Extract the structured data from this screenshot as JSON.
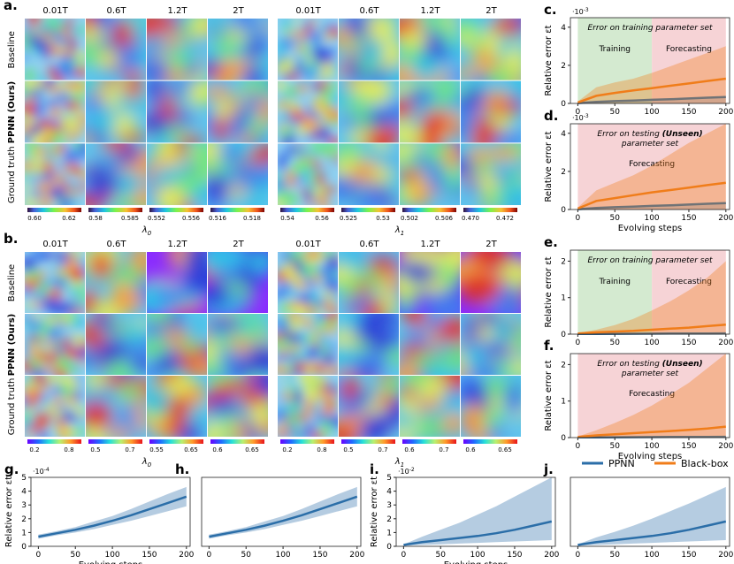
{
  "panels": {
    "a": {
      "letter": "a.",
      "time_labels": [
        "0.01T",
        "0.6T",
        "1.2T",
        "2T"
      ],
      "row_labels": [
        "Baseline",
        "PPNN (Ours)",
        "Ground truth"
      ],
      "groups": [
        {
          "xlabel": "λ0",
          "colorbar_ticks": [
            [
              "0.60",
              "0.62"
            ],
            [
              "0.58",
              "0.585"
            ],
            [
              "0.552",
              "0.556"
            ],
            [
              "0.516",
              "0.518"
            ]
          ]
        },
        {
          "xlabel": "λ1",
          "colorbar_ticks": [
            [
              "0.54",
              "0.56"
            ],
            [
              "0.525",
              "0.53"
            ],
            [
              "0.502",
              "0.506"
            ],
            [
              "0.470",
              "0.472"
            ]
          ]
        }
      ]
    },
    "b": {
      "letter": "b.",
      "time_labels": [
        "0.01T",
        "0.6T",
        "1.2T",
        "2T"
      ],
      "row_labels": [
        "Baseline",
        "PPNN (Ours)",
        "Ground truth"
      ],
      "groups": [
        {
          "xlabel": "λ0",
          "colorbar_ticks": [
            [
              "0.2",
              "0.8"
            ],
            [
              "0.5",
              "0.7"
            ],
            [
              "0.55",
              "0.65"
            ],
            [
              "0.6",
              "0.65"
            ]
          ]
        },
        {
          "xlabel": "λ1",
          "colorbar_ticks": [
            [
              "0.2",
              "0.8"
            ],
            [
              "0.5",
              "0.7"
            ],
            [
              "0.6",
              "0.7"
            ],
            [
              "0.6",
              "0.65"
            ]
          ]
        }
      ]
    }
  },
  "colors": {
    "ppnn": "#2b6ea8",
    "blackbox": "#f07d1a",
    "training_bg": "#d4ead0",
    "forecast_bg": "#f6d3d6"
  },
  "legend": {
    "ppnn": "PPNN",
    "blackbox": "Black-box"
  },
  "chart_data": [
    {
      "panel": "c.",
      "type": "line",
      "title": "Error on training parameter set",
      "multiplier": "10^-3",
      "ylabel": "Relative error εt",
      "xlabel": "",
      "ylim": [
        0,
        4.5
      ],
      "xlim": [
        -10,
        205
      ],
      "yticks": [
        "0",
        "2",
        "4"
      ],
      "xticks": [
        "0",
        "50",
        "100",
        "150",
        "200"
      ],
      "regions": [
        {
          "label": "Training",
          "from": 0,
          "to": 100
        },
        {
          "label": "Forecasting",
          "from": 100,
          "to": 200
        }
      ],
      "x": [
        0,
        25,
        50,
        75,
        100,
        125,
        150,
        175,
        200
      ],
      "series": [
        {
          "name": "PPNN",
          "values": [
            0.02,
            0.08,
            0.12,
            0.15,
            0.19,
            0.22,
            0.26,
            0.3,
            0.34
          ],
          "upper": [
            0.03,
            0.1,
            0.14,
            0.18,
            0.22,
            0.26,
            0.3,
            0.34,
            0.38
          ]
        },
        {
          "name": "Black-box",
          "values": [
            0.05,
            0.4,
            0.55,
            0.68,
            0.8,
            0.93,
            1.05,
            1.18,
            1.3
          ],
          "upper": [
            0.1,
            0.85,
            1.1,
            1.3,
            1.6,
            1.95,
            2.3,
            2.65,
            3.0
          ]
        }
      ]
    },
    {
      "panel": "d.",
      "type": "line",
      "title": "Error on testing (Unseen) parameter set",
      "multiplier": "10^-3",
      "ylabel": "Relative error εt",
      "xlabel": "Evolving steps",
      "ylim": [
        0,
        4.5
      ],
      "xlim": [
        -10,
        205
      ],
      "yticks": [
        "0",
        "2",
        "4"
      ],
      "xticks": [
        "0",
        "50",
        "100",
        "150",
        "200"
      ],
      "regions": [
        {
          "label": "Forecasting",
          "from": 0,
          "to": 200
        }
      ],
      "x": [
        0,
        25,
        50,
        75,
        100,
        125,
        150,
        175,
        200
      ],
      "series": [
        {
          "name": "PPNN",
          "values": [
            0.02,
            0.08,
            0.12,
            0.15,
            0.19,
            0.22,
            0.26,
            0.3,
            0.34
          ],
          "upper": [
            0.03,
            0.1,
            0.14,
            0.18,
            0.22,
            0.26,
            0.3,
            0.34,
            0.38
          ]
        },
        {
          "name": "Black-box",
          "values": [
            0.05,
            0.45,
            0.6,
            0.75,
            0.9,
            1.02,
            1.15,
            1.28,
            1.4
          ],
          "upper": [
            0.1,
            1.0,
            1.4,
            1.8,
            2.3,
            2.9,
            3.5,
            4.0,
            4.5
          ]
        }
      ]
    },
    {
      "panel": "e.",
      "type": "line",
      "title": "Error on training parameter set",
      "multiplier": "",
      "ylabel": "Relative error εt",
      "xlabel": "",
      "ylim": [
        0,
        2.3
      ],
      "xlim": [
        -10,
        205
      ],
      "yticks": [
        "0",
        "1",
        "2"
      ],
      "xticks": [
        "0",
        "50",
        "100",
        "150",
        "200"
      ],
      "regions": [
        {
          "label": "Training",
          "from": 0,
          "to": 100
        },
        {
          "label": "Forecasting",
          "from": 100,
          "to": 200
        }
      ],
      "x": [
        0,
        25,
        50,
        75,
        100,
        125,
        150,
        175,
        200
      ],
      "series": [
        {
          "name": "PPNN",
          "values": [
            0.005,
            0.008,
            0.01,
            0.012,
            0.014,
            0.016,
            0.018,
            0.02,
            0.022
          ],
          "upper": [
            0.006,
            0.01,
            0.013,
            0.016,
            0.019,
            0.022,
            0.025,
            0.028,
            0.031
          ]
        },
        {
          "name": "Black-box",
          "values": [
            0.02,
            0.05,
            0.07,
            0.09,
            0.12,
            0.15,
            0.18,
            0.22,
            0.26
          ],
          "upper": [
            0.03,
            0.12,
            0.25,
            0.42,
            0.65,
            0.9,
            1.2,
            1.55,
            2.0
          ]
        }
      ]
    },
    {
      "panel": "f.",
      "type": "line",
      "title": "Error on testing (Unseen) parameter set",
      "multiplier": "",
      "ylabel": "Relative error εt",
      "xlabel": "Evolving steps",
      "ylim": [
        0,
        2.3
      ],
      "xlim": [
        -10,
        205
      ],
      "yticks": [
        "0",
        "1",
        "2"
      ],
      "xticks": [
        "0",
        "50",
        "100",
        "150",
        "200"
      ],
      "regions": [
        {
          "label": "Forecasting",
          "from": 0,
          "to": 200
        }
      ],
      "x": [
        0,
        25,
        50,
        75,
        100,
        125,
        150,
        175,
        200
      ],
      "series": [
        {
          "name": "PPNN",
          "values": [
            0.005,
            0.008,
            0.01,
            0.012,
            0.014,
            0.016,
            0.018,
            0.02,
            0.022
          ],
          "upper": [
            0.006,
            0.01,
            0.013,
            0.016,
            0.019,
            0.022,
            0.025,
            0.028,
            0.031
          ]
        },
        {
          "name": "Black-box",
          "values": [
            0.02,
            0.06,
            0.09,
            0.12,
            0.15,
            0.18,
            0.21,
            0.25,
            0.3
          ],
          "upper": [
            0.03,
            0.2,
            0.4,
            0.62,
            0.88,
            1.18,
            1.5,
            1.9,
            2.4
          ]
        }
      ]
    },
    {
      "panel": "g.",
      "type": "line",
      "multiplier": "10^-4",
      "ylabel": "Relative error εt",
      "xlabel": "Evolving steps",
      "ylim": [
        0,
        5
      ],
      "xlim": [
        -10,
        205
      ],
      "yticks": [
        "0",
        "1",
        "2",
        "3",
        "4",
        "5"
      ],
      "xticks": [
        "0",
        "50",
        "100",
        "150",
        "200"
      ],
      "x": [
        0,
        25,
        50,
        75,
        100,
        125,
        150,
        175,
        200
      ],
      "series": [
        {
          "name": "PPNN",
          "values": [
            0.7,
            0.95,
            1.2,
            1.5,
            1.85,
            2.25,
            2.7,
            3.15,
            3.6
          ],
          "lower": [
            0.55,
            0.8,
            1.0,
            1.25,
            1.55,
            1.85,
            2.2,
            2.55,
            2.9
          ],
          "upper": [
            0.85,
            1.1,
            1.4,
            1.8,
            2.2,
            2.7,
            3.25,
            3.8,
            4.3
          ]
        }
      ]
    },
    {
      "panel": "h.",
      "type": "line",
      "multiplier": "",
      "ylabel": "",
      "xlabel": "",
      "ylim": [
        0,
        5
      ],
      "xlim": [
        -10,
        205
      ],
      "yticks": [],
      "xticks": [
        "0",
        "50",
        "100",
        "150",
        "200"
      ],
      "x": [
        0,
        25,
        50,
        75,
        100,
        125,
        150,
        175,
        200
      ],
      "series": [
        {
          "name": "PPNN",
          "values": [
            0.7,
            0.95,
            1.2,
            1.5,
            1.85,
            2.25,
            2.7,
            3.15,
            3.6
          ],
          "lower": [
            0.55,
            0.8,
            1.0,
            1.25,
            1.55,
            1.85,
            2.2,
            2.55,
            2.9
          ],
          "upper": [
            0.85,
            1.1,
            1.4,
            1.8,
            2.2,
            2.7,
            3.25,
            3.8,
            4.3
          ]
        }
      ]
    },
    {
      "panel": "i.",
      "type": "line",
      "multiplier": "10^-2",
      "ylabel": "Relative error εt",
      "xlabel": "Evolving steps",
      "ylim": [
        0,
        5
      ],
      "xlim": [
        -10,
        205
      ],
      "yticks": [
        "0",
        "1",
        "2",
        "3",
        "4",
        "5"
      ],
      "xticks": [
        "0",
        "50",
        "100",
        "150",
        "200"
      ],
      "x": [
        0,
        25,
        50,
        75,
        100,
        125,
        150,
        175,
        200
      ],
      "series": [
        {
          "name": "PPNN",
          "values": [
            0.1,
            0.3,
            0.45,
            0.6,
            0.75,
            0.95,
            1.2,
            1.5,
            1.8
          ],
          "lower": [
            0.05,
            0.1,
            0.15,
            0.2,
            0.25,
            0.3,
            0.35,
            0.4,
            0.45
          ],
          "upper": [
            0.15,
            0.7,
            1.2,
            1.7,
            2.3,
            2.9,
            3.6,
            4.3,
            5.0
          ]
        }
      ]
    },
    {
      "panel": "j.",
      "type": "line",
      "multiplier": "",
      "ylabel": "",
      "xlabel": "",
      "ylim": [
        0,
        5
      ],
      "xlim": [
        -10,
        205
      ],
      "yticks": [],
      "xticks": [
        "0",
        "50",
        "100",
        "150",
        "200"
      ],
      "x": [
        0,
        25,
        50,
        75,
        100,
        125,
        150,
        175,
        200
      ],
      "series": [
        {
          "name": "PPNN",
          "values": [
            0.1,
            0.3,
            0.45,
            0.6,
            0.75,
            0.95,
            1.2,
            1.5,
            1.8
          ],
          "lower": [
            0.05,
            0.1,
            0.15,
            0.2,
            0.25,
            0.3,
            0.35,
            0.4,
            0.45
          ],
          "upper": [
            0.15,
            0.65,
            1.05,
            1.5,
            2.0,
            2.55,
            3.1,
            3.7,
            4.3
          ]
        }
      ]
    }
  ]
}
